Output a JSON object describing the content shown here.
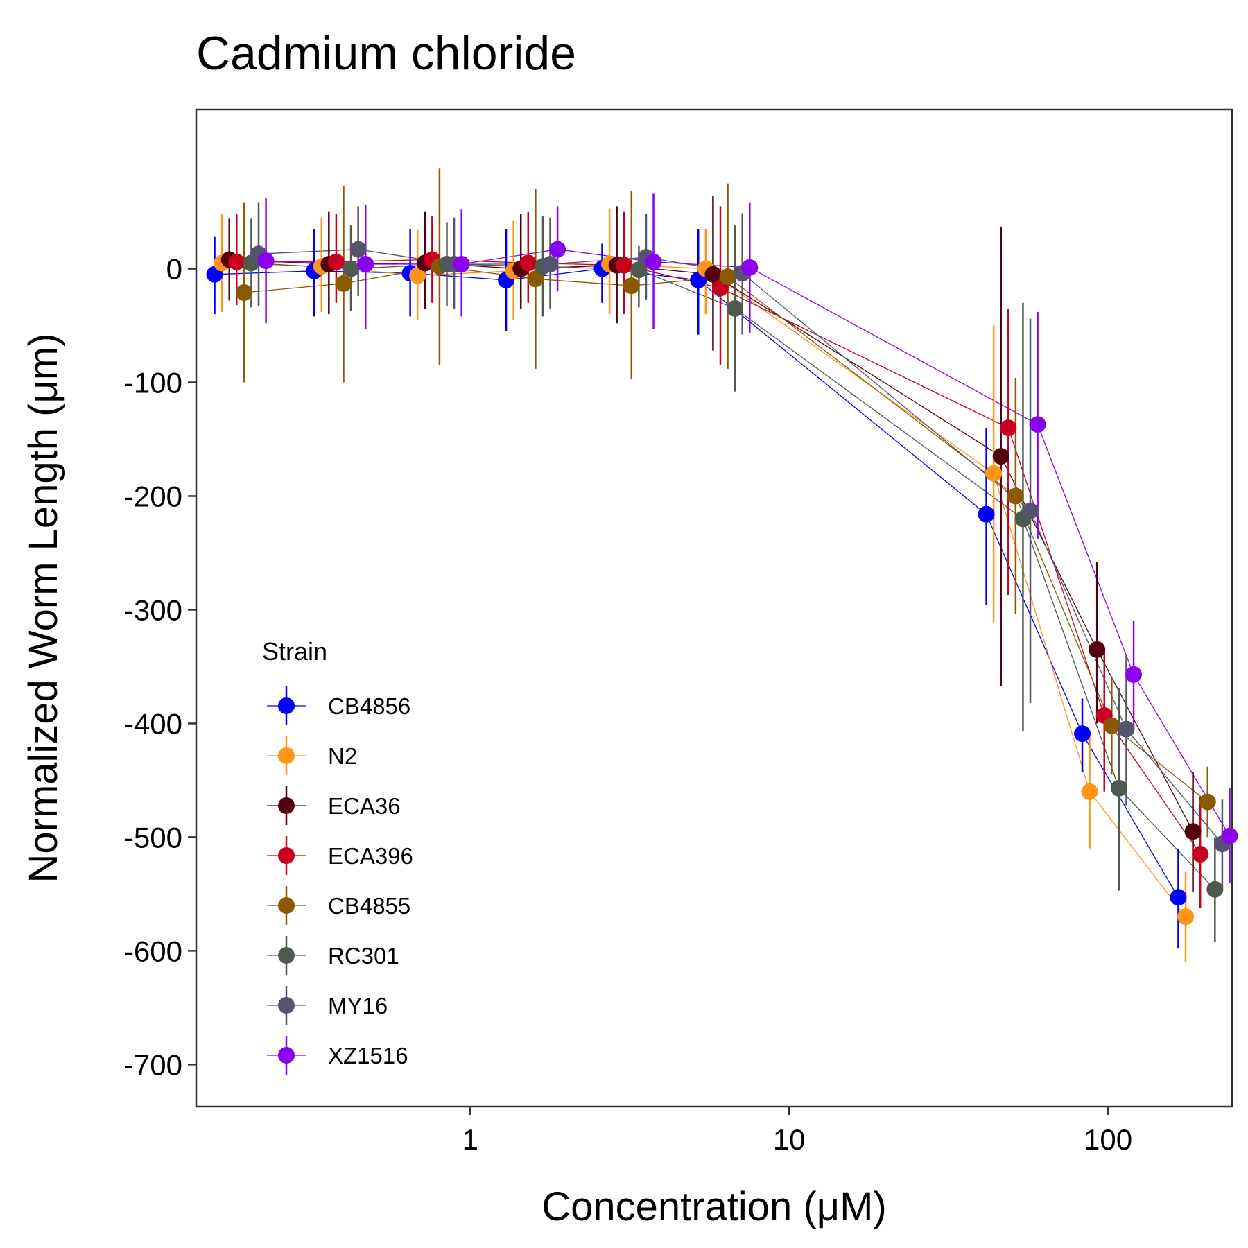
{
  "chart_data": {
    "type": "scatter",
    "title": "Cadmium chloride",
    "xlabel": "Concentration (μM)",
    "ylabel": "Normalized Worm Length (μm)",
    "x_scale": "log",
    "x_ticks": [
      1,
      10,
      100
    ],
    "x_tick_labels": [
      "1",
      "10",
      "100"
    ],
    "y_ticks": [
      0,
      -100,
      -200,
      -300,
      -400,
      -500,
      -600,
      -700
    ],
    "y_tick_labels": [
      "0",
      "-100",
      "-200",
      "-300",
      "-400",
      "-500",
      "-600",
      "-700"
    ],
    "xlim": [
      0.1382,
      245
    ],
    "ylim": [
      -737,
      140
    ],
    "grid": false,
    "legend": {
      "title": "Strain",
      "placement": "bottom-left"
    },
    "series": [
      {
        "name": "CB4856",
        "color": "#0000FF",
        "x": [
          0.19,
          0.39,
          0.78,
          1.56,
          3.12,
          6.25,
          50,
          100,
          200
        ],
        "y": [
          -5,
          -2,
          -4,
          -10,
          0,
          -10,
          -216,
          -409,
          -553
        ],
        "lower": [
          -40,
          -42,
          -42,
          -55,
          -30,
          -58,
          -296,
          -443,
          -598
        ],
        "upper": [
          28,
          35,
          35,
          35,
          22,
          35,
          -140,
          -378,
          -510
        ]
      },
      {
        "name": "N2",
        "color": "#FF9416",
        "x": [
          0.19,
          0.39,
          0.78,
          1.56,
          3.12,
          6.25,
          50,
          100,
          200
        ],
        "y": [
          5,
          2,
          -6,
          -2,
          4,
          0,
          -180,
          -460,
          -570
        ],
        "lower": [
          -38,
          -38,
          -45,
          -45,
          -40,
          -40,
          -311,
          -510,
          -610
        ],
        "upper": [
          48,
          45,
          34,
          42,
          53,
          35,
          -50,
          -410,
          -530
        ]
      },
      {
        "name": "ECA36",
        "color": "#52000E",
        "x": [
          0.19,
          0.39,
          0.78,
          1.56,
          3.12,
          6.25,
          50,
          100,
          200
        ],
        "y": [
          8,
          4,
          5,
          0,
          3,
          -5,
          -165,
          -335,
          -495
        ],
        "lower": [
          -28,
          -40,
          -35,
          -35,
          -48,
          -72,
          -367,
          -400,
          -548
        ],
        "upper": [
          44,
          50,
          50,
          48,
          55,
          64,
          37,
          -258,
          -443
        ]
      },
      {
        "name": "ECA396",
        "color": "#C8001E",
        "x": [
          0.19,
          0.39,
          0.78,
          1.56,
          3.12,
          6.25,
          50,
          100,
          200
        ],
        "y": [
          6,
          6,
          8,
          5,
          3,
          -17,
          -140,
          -393,
          -515
        ],
        "lower": [
          -32,
          -30,
          -30,
          -30,
          -40,
          -85,
          -287,
          -460,
          -562
        ],
        "upper": [
          48,
          48,
          46,
          50,
          50,
          55,
          -35,
          -335,
          -465
        ]
      },
      {
        "name": "CB4855",
        "color": "#8B5A00",
        "x": [
          0.19,
          0.39,
          0.78,
          1.56,
          3.12,
          6.25,
          50,
          100,
          200
        ],
        "y": [
          -21,
          -13,
          2,
          -9,
          -15,
          -7,
          -200,
          -402,
          -469
        ],
        "lower": [
          -100,
          -100,
          -85,
          -88,
          -97,
          -88,
          -304,
          -445,
          -500
        ],
        "upper": [
          58,
          73,
          88,
          70,
          68,
          75,
          -96,
          -360,
          -438
        ]
      },
      {
        "name": "RC301",
        "color": "#4D5A4D",
        "x": [
          0.19,
          0.39,
          0.78,
          1.56,
          3.12,
          6.25,
          50,
          100,
          200
        ],
        "y": [
          5,
          0,
          4,
          2,
          -1,
          -35,
          -220,
          -457,
          -546
        ],
        "lower": [
          -34,
          -37,
          -33,
          -42,
          -34,
          -108,
          -407,
          -547,
          -592
        ],
        "upper": [
          44,
          38,
          41,
          46,
          20,
          38,
          -30,
          -369,
          -500
        ]
      },
      {
        "name": "MY16",
        "color": "#545470",
        "x": [
          0.19,
          0.39,
          0.78,
          1.56,
          3.12,
          6.25,
          50,
          100,
          200
        ],
        "y": [
          13,
          17,
          4,
          4,
          10,
          -4,
          -213,
          -405,
          -506
        ],
        "lower": [
          -33,
          -24,
          -35,
          -35,
          -27,
          -58,
          -382,
          -472,
          -545
        ],
        "upper": [
          58,
          55,
          45,
          45,
          48,
          49,
          -44,
          -339,
          -467
        ]
      },
      {
        "name": "XZ1516",
        "color": "#8C00F0",
        "x": [
          0.19,
          0.39,
          0.78,
          1.56,
          3.12,
          6.25,
          50,
          100,
          200
        ],
        "y": [
          7,
          4,
          4,
          17,
          6,
          1,
          -137,
          -357,
          -499
        ],
        "lower": [
          -48,
          -53,
          -42,
          -20,
          -53,
          -57,
          -238,
          -405,
          -540
        ],
        "upper": [
          62,
          56,
          52,
          55,
          66,
          58,
          -38,
          -310,
          -457
        ]
      }
    ]
  }
}
